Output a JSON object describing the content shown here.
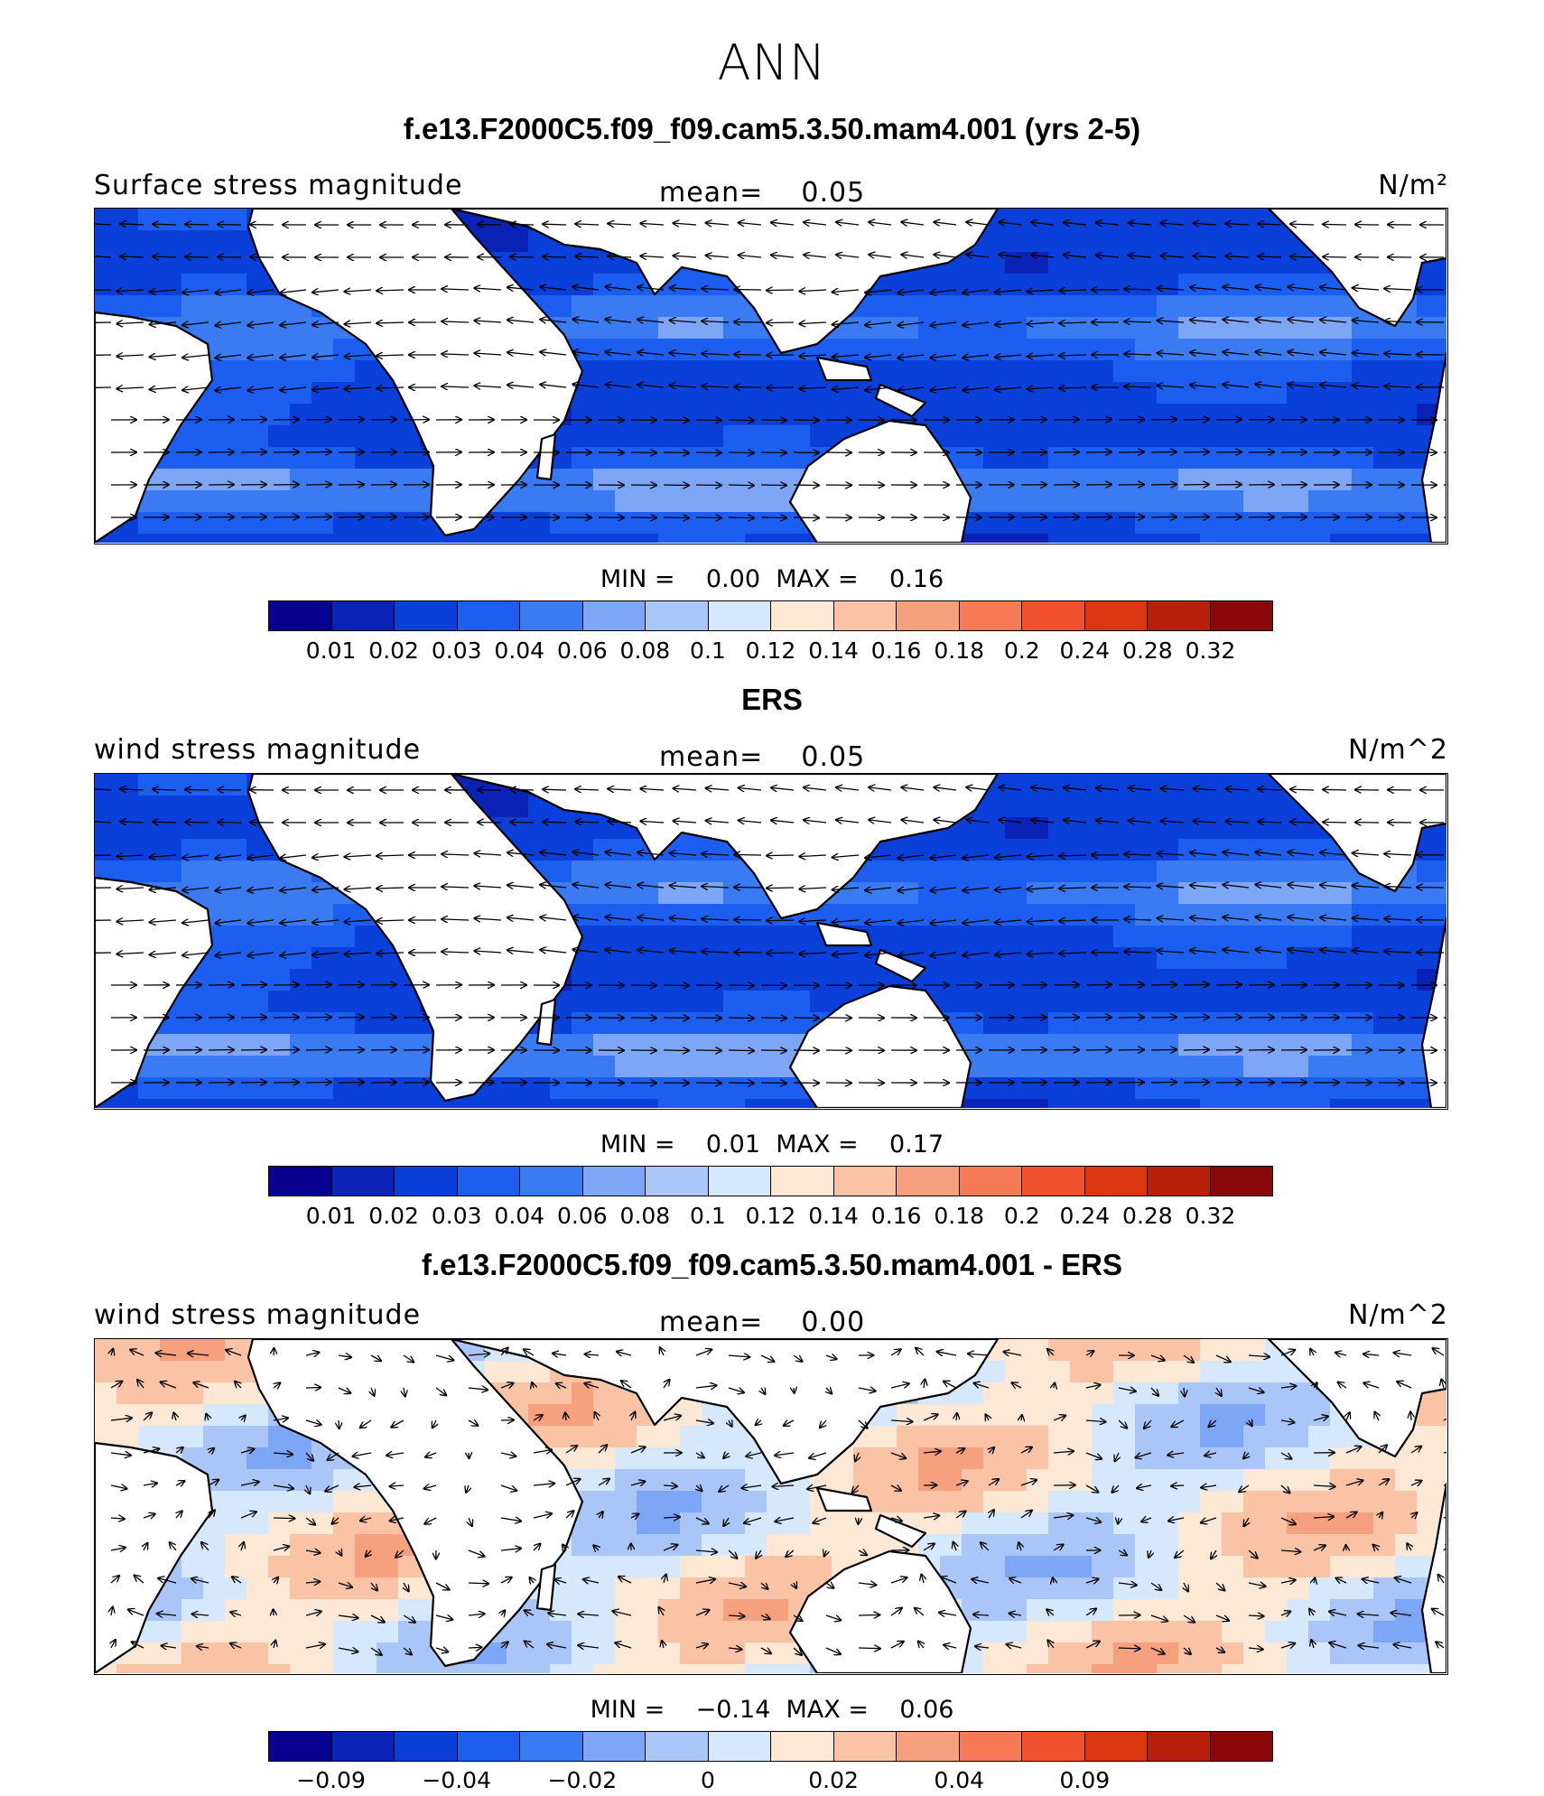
{
  "page": {
    "season": "ANN"
  },
  "colors": {
    "scale": [
      "#08008f",
      "#0a22b5",
      "#0a40d9",
      "#1c5ef0",
      "#3a7af2",
      "#7ea6f7",
      "#aac6f8",
      "#d6e8fb",
      "#fde8d6",
      "#fbc3a6",
      "#f7a07e",
      "#f57a55",
      "#f2512e",
      "#dd3711",
      "#b81f0a",
      "#8a0808"
    ],
    "land": "#ffffff",
    "coast": "#000000"
  },
  "panels": [
    {
      "title": "f.e13.F2000C5.f09_f09.cam5.3.50.mam4.001 (yrs 2-5)",
      "left_label": "Surface stress magnitude",
      "mean_label": "mean=",
      "mean_value": "0.05",
      "units": "N/m²",
      "min_label": "MIN =",
      "min_value": "0.00",
      "max_label": "MAX =",
      "max_value": "0.16",
      "colorbar_labels": [
        "0.01",
        "0.02",
        "0.03",
        "0.04",
        "0.06",
        "0.08",
        "0.1",
        "0.12",
        "0.14",
        "0.16",
        "0.18",
        "0.2",
        "0.24",
        "0.28",
        "0.32"
      ],
      "field_type": "magnitude"
    },
    {
      "title": "ERS",
      "left_label": "wind stress magnitude",
      "mean_label": "mean=",
      "mean_value": "0.05",
      "units": "N/m^2",
      "min_label": "MIN =",
      "min_value": "0.01",
      "max_label": "MAX =",
      "max_value": "0.17",
      "colorbar_labels": [
        "0.01",
        "0.02",
        "0.03",
        "0.04",
        "0.06",
        "0.08",
        "0.1",
        "0.12",
        "0.14",
        "0.16",
        "0.18",
        "0.2",
        "0.24",
        "0.28",
        "0.32"
      ],
      "field_type": "magnitude"
    },
    {
      "title": "f.e13.F2000C5.f09_f09.cam5.3.50.mam4.001 - ERS",
      "left_label": "wind stress magnitude",
      "mean_label": "mean=",
      "mean_value": "0.00",
      "units": "N/m^2",
      "min_label": "MIN =",
      "min_value": "−0.14",
      "max_label": "MAX =",
      "max_value": "0.06",
      "colorbar_labels": [
        "−0.09",
        "",
        "−0.04",
        "",
        "−0.02",
        "",
        "0",
        "",
        "0.02",
        "",
        "0.04",
        "",
        "0.09",
        "",
        ""
      ],
      "field_type": "difference"
    }
  ]
}
